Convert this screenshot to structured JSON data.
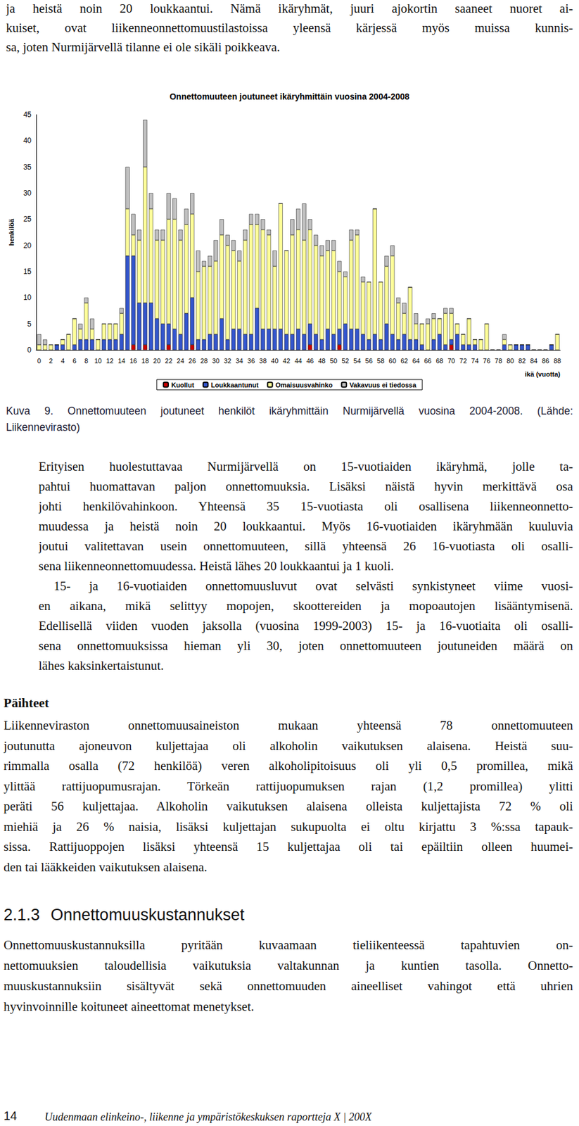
{
  "top_paragraph": [
    "ja heistä noin 20 loukkaantui. Nämä ikäryhmät, juuri ajokortin saaneet nuoret ai-",
    "kuiset, ovat liikenneonnettomuustilastoissa yleensä kärjessä myös muissa kunnis-",
    "sa, joten Nurmijärvellä tilanne ei ole sikäli poikkeava."
  ],
  "chart_data": {
    "type": "bar",
    "title": "Onnettomuuteen joutuneet ikäryhmittäin vuosina 2004-2008",
    "x_label": "ikä (vuotta)",
    "y_label": "henkilöä",
    "categories": [
      0,
      null,
      2,
      null,
      4,
      null,
      6,
      null,
      8,
      null,
      10,
      null,
      12,
      null,
      14,
      null,
      16,
      null,
      18,
      null,
      20,
      null,
      22,
      null,
      24,
      null,
      26,
      null,
      28,
      null,
      30,
      null,
      32,
      null,
      34,
      null,
      36,
      null,
      38,
      null,
      40,
      null,
      42,
      null,
      44,
      null,
      46,
      null,
      48,
      null,
      50,
      null,
      52,
      null,
      54,
      null,
      56,
      null,
      58,
      null,
      60,
      null,
      62,
      null,
      64,
      null,
      66,
      null,
      68,
      null,
      70,
      null,
      72,
      null,
      74,
      null,
      76,
      null,
      78,
      null,
      80,
      null,
      82,
      null,
      84,
      null,
      86,
      null,
      88
    ],
    "series": [
      {
        "name": "Kuollut",
        "color": "#cc0000",
        "values": [
          0,
          0,
          0,
          0,
          0,
          0,
          0,
          0,
          0,
          0,
          0,
          0,
          0,
          0,
          0,
          0,
          1,
          0,
          1,
          0,
          0,
          0,
          1,
          0,
          0,
          0,
          1,
          0,
          0,
          0,
          0,
          0,
          0,
          0,
          0,
          0,
          0,
          0,
          0,
          0,
          0,
          0,
          0,
          0,
          0,
          0,
          1,
          0,
          0,
          0,
          0,
          1,
          0,
          0,
          0,
          0,
          0,
          0,
          0,
          0,
          0,
          0,
          0,
          0,
          0,
          0,
          0,
          0,
          0,
          0,
          1,
          0,
          0,
          0,
          0,
          0,
          0,
          0,
          0,
          0,
          0,
          0,
          0,
          0,
          0,
          0,
          0,
          0,
          0
        ]
      },
      {
        "name": "Loukkaantunut",
        "color": "#3355cc",
        "values": [
          0,
          0,
          0,
          1,
          1,
          0,
          1,
          2,
          2,
          2,
          0,
          2,
          2,
          2,
          3,
          18,
          17,
          9,
          8,
          9,
          6,
          5,
          4,
          4,
          3,
          7,
          9,
          2,
          2,
          3,
          3,
          6,
          2,
          4,
          4,
          3,
          3,
          8,
          4,
          4,
          4,
          4,
          3,
          3,
          4,
          3,
          4,
          3,
          2,
          4,
          3,
          3,
          5,
          4,
          4,
          3,
          2,
          3,
          2,
          5,
          3,
          2,
          3,
          2,
          2,
          1,
          0,
          2,
          3,
          1,
          1,
          3,
          1,
          1,
          1,
          0,
          0,
          0,
          0,
          1,
          0,
          1,
          1,
          1,
          0,
          0,
          0,
          1,
          0
        ]
      },
      {
        "name": "Omaisuusvahinko",
        "color": "#ffff99",
        "values": [
          1,
          1,
          1,
          0,
          1,
          3,
          5,
          2,
          7,
          2,
          2,
          3,
          3,
          3,
          4,
          9,
          4,
          12,
          26,
          18,
          15,
          16,
          20,
          21,
          18,
          17,
          16,
          13,
          14,
          13,
          14,
          16,
          18,
          15,
          13,
          18,
          21,
          16,
          19,
          18,
          12,
          24,
          16,
          19,
          19,
          18,
          18,
          17,
          16,
          15,
          16,
          11,
          9,
          17,
          18,
          10,
          11,
          24,
          11,
          11,
          15,
          7,
          4,
          10,
          3,
          4,
          5,
          4,
          3,
          6,
          5,
          2,
          2,
          5,
          1,
          2,
          5,
          0,
          0,
          1,
          1,
          0,
          0,
          0,
          0,
          0,
          0,
          0,
          3
        ]
      },
      {
        "name": "Vakavuus ei tiedossa",
        "color": "#c0c0c0",
        "values": [
          2,
          1,
          0,
          0,
          0,
          0,
          0,
          1,
          1,
          2,
          0,
          0,
          0,
          0,
          1,
          8,
          4,
          2,
          9,
          3,
          2,
          2,
          5,
          4,
          2,
          3,
          4,
          4,
          1,
          2,
          4,
          3,
          2,
          2,
          2,
          2,
          2,
          2,
          2,
          1,
          3,
          0,
          0,
          3,
          4,
          7,
          2,
          2,
          2,
          2,
          2,
          2,
          1,
          2,
          1,
          1,
          0,
          0,
          0,
          2,
          2,
          1,
          2,
          0,
          2,
          0,
          1,
          1,
          0,
          1,
          1,
          0,
          0,
          0,
          0,
          0,
          0,
          0,
          0,
          1,
          0,
          0,
          0,
          0,
          0,
          0,
          0,
          0,
          0
        ]
      }
    ],
    "ylim": [
      0,
      45
    ],
    "yticks": [
      0,
      5,
      10,
      15,
      20,
      25,
      30,
      35,
      40,
      45
    ],
    "stacked": true,
    "grid": false,
    "legend": "bottom"
  },
  "caption": [
    "Kuva 9. Onnettomuuteen joutuneet henkilöt ikäryhmittäin Nurmijärvellä vuosina 2004-2008. (Lähde:",
    "Liikennevirasto)"
  ],
  "body_paragraphs": [
    [
      "Erityisen huolestuttavaa Nurmijärvellä on 15-vuotiaiden ikäryhmä, jolle ta-",
      "pahtui huomattavan paljon onnettomuuksia. Lisäksi näistä hyvin merkittävä osa",
      "johti henkilövahinkoon. Yhteensä 35 15-vuotiasta oli osallisena liikenneonnetto-",
      "muudessa ja heistä noin 20 loukkaantui. Myös 16-vuotiaiden ikäryhmään kuuluvia",
      "joutui valitettavan usein onnettomuuteen, sillä yhteensä 26 16-vuotiasta oli osalli-",
      "sena liikenneonnettomuudessa. Heistä lähes 20 loukkaantui ja 1 kuoli."
    ],
    [
      "15- ja 16-vuotiaiden onnettomuusluvut ovat selvästi synkistyneet viime vuosi-",
      "en aikana, mikä selittyy mopojen, skoottereiden ja mopoautojen lisääntymisenä.",
      "Edellisellä viiden vuoden jaksolla (vuosina 1999-2003) 15- ja 16-vuotiaita oli osalli-",
      "sena onnettomuuksissa hieman yli 30, joten onnettomuuteen joutuneiden määrä on",
      "lähes kaksinkertaistunut."
    ]
  ],
  "section": {
    "title": "Päihteet",
    "paragraph": [
      "Liikenneviraston onnettomuusaineiston mukaan yhteensä 78 onnettomuuteen",
      "joutunutta ajoneuvon kuljettajaa oli alkoholin vaikutuksen alaisena. Heistä suu-",
      "rimmalla osalla (72 henkilöä) veren alkoholipitoisuus oli yli 0,5 promillea, mikä",
      "ylittää rattijuopumusrajan. Törkeän rattijuopumuksen rajan (1,2 promillea) ylitti",
      "peräti 56 kuljettajaa. Alkoholin vaikutuksen alaisena olleista kuljettajista 72 % oli",
      "miehiä ja 26 % naisia, lisäksi kuljettajan sukupuolta ei oltu kirjattu 3 %:ssa tapauk-",
      "sissa. Rattijuoppojen lisäksi yhteensä 15 kuljettajaa oli tai epäiltiin olleen huumei-",
      "den tai lääkkeiden vaikutuksen alaisena."
    ]
  },
  "subsection": {
    "number": "2.1.3",
    "title": "Onnettomuuskustannukset",
    "paragraph": [
      "Onnettomuuskustannuksilla pyritään kuvaamaan tieliikenteessä tapahtuvien on-",
      "nettomuuksien taloudellisia vaikutuksia valtakunnan ja kuntien tasolla. Onnetto-",
      "muuskustannuksiin sisältyvät sekä onnettomuuden aineelliset vahingot että uhrien",
      "hyvinvoinnille koituneet aineettomat menetykset."
    ]
  },
  "footer": {
    "page": "14",
    "text": "Uudenmaan elinkeino-, liikenne ja ympäristökeskuksen raportteja X | 200X"
  }
}
